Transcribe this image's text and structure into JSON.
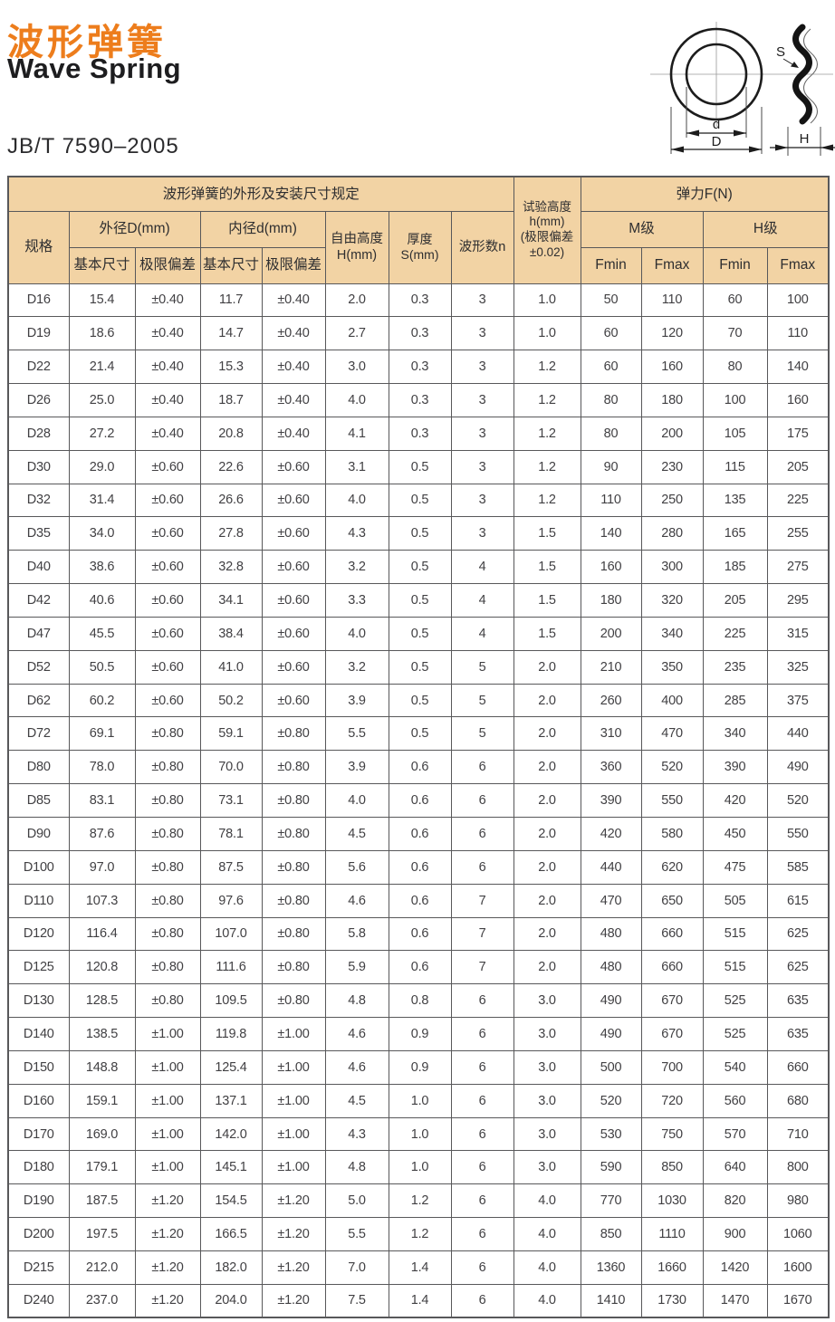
{
  "page": {
    "title_cn": "波形弹簧",
    "title_en": "Wave Spring",
    "standard": "JB/T 7590–2005"
  },
  "colors": {
    "accent_orange": "#ED7D1C",
    "table_header_bg": "#F2D3A4",
    "table_border": "#58585A",
    "text_dark": "#414043"
  },
  "diagram": {
    "labels": {
      "inner": "d",
      "outer": "D",
      "thickness": "S",
      "height": "H"
    }
  },
  "table": {
    "header": {
      "group_title": "波形弹簧的外形及安装尺寸规定",
      "spec": "规格",
      "outer_diameter": "外径D(mm)",
      "inner_diameter": "内径d(mm)",
      "basic_size_od": "基本尺寸",
      "limit_dev_od": "极限偏差",
      "basic_size_id": "基本尺寸",
      "limit_dev_id": "极限偏差",
      "free_height": "自由高度\nH(mm)",
      "thickness": "厚度S(mm)",
      "wave_count": "波形数n",
      "test_height": "试验高度\nh(mm)\n(极限偏差\n±0.02)",
      "force": "弹力F(N)",
      "m_grade": "M级",
      "h_grade": "H级",
      "fmin_m": "Fmin",
      "fmax_m": "Fmax",
      "fmin_h": "Fmin",
      "fmax_h": "Fmax"
    },
    "rows": [
      [
        "D16",
        "15.4",
        "±0.40",
        "11.7",
        "±0.40",
        "2.0",
        "0.3",
        "3",
        "1.0",
        "50",
        "110",
        "60",
        "100"
      ],
      [
        "D19",
        "18.6",
        "±0.40",
        "14.7",
        "±0.40",
        "2.7",
        "0.3",
        "3",
        "1.0",
        "60",
        "120",
        "70",
        "110"
      ],
      [
        "D22",
        "21.4",
        "±0.40",
        "15.3",
        "±0.40",
        "3.0",
        "0.3",
        "3",
        "1.2",
        "60",
        "160",
        "80",
        "140"
      ],
      [
        "D26",
        "25.0",
        "±0.40",
        "18.7",
        "±0.40",
        "4.0",
        "0.3",
        "3",
        "1.2",
        "80",
        "180",
        "100",
        "160"
      ],
      [
        "D28",
        "27.2",
        "±0.40",
        "20.8",
        "±0.40",
        "4.1",
        "0.3",
        "3",
        "1.2",
        "80",
        "200",
        "105",
        "175"
      ],
      [
        "D30",
        "29.0",
        "±0.60",
        "22.6",
        "±0.60",
        "3.1",
        "0.5",
        "3",
        "1.2",
        "90",
        "230",
        "115",
        "205"
      ],
      [
        "D32",
        "31.4",
        "±0.60",
        "26.6",
        "±0.60",
        "4.0",
        "0.5",
        "3",
        "1.2",
        "110",
        "250",
        "135",
        "225"
      ],
      [
        "D35",
        "34.0",
        "±0.60",
        "27.8",
        "±0.60",
        "4.3",
        "0.5",
        "3",
        "1.5",
        "140",
        "280",
        "165",
        "255"
      ],
      [
        "D40",
        "38.6",
        "±0.60",
        "32.8",
        "±0.60",
        "3.2",
        "0.5",
        "4",
        "1.5",
        "160",
        "300",
        "185",
        "275"
      ],
      [
        "D42",
        "40.6",
        "±0.60",
        "34.1",
        "±0.60",
        "3.3",
        "0.5",
        "4",
        "1.5",
        "180",
        "320",
        "205",
        "295"
      ],
      [
        "D47",
        "45.5",
        "±0.60",
        "38.4",
        "±0.60",
        "4.0",
        "0.5",
        "4",
        "1.5",
        "200",
        "340",
        "225",
        "315"
      ],
      [
        "D52",
        "50.5",
        "±0.60",
        "41.0",
        "±0.60",
        "3.2",
        "0.5",
        "5",
        "2.0",
        "210",
        "350",
        "235",
        "325"
      ],
      [
        "D62",
        "60.2",
        "±0.60",
        "50.2",
        "±0.60",
        "3.9",
        "0.5",
        "5",
        "2.0",
        "260",
        "400",
        "285",
        "375"
      ],
      [
        "D72",
        "69.1",
        "±0.80",
        "59.1",
        "±0.80",
        "5.5",
        "0.5",
        "5",
        "2.0",
        "310",
        "470",
        "340",
        "440"
      ],
      [
        "D80",
        "78.0",
        "±0.80",
        "70.0",
        "±0.80",
        "3.9",
        "0.6",
        "6",
        "2.0",
        "360",
        "520",
        "390",
        "490"
      ],
      [
        "D85",
        "83.1",
        "±0.80",
        "73.1",
        "±0.80",
        "4.0",
        "0.6",
        "6",
        "2.0",
        "390",
        "550",
        "420",
        "520"
      ],
      [
        "D90",
        "87.6",
        "±0.80",
        "78.1",
        "±0.80",
        "4.5",
        "0.6",
        "6",
        "2.0",
        "420",
        "580",
        "450",
        "550"
      ],
      [
        "D100",
        "97.0",
        "±0.80",
        "87.5",
        "±0.80",
        "5.6",
        "0.6",
        "6",
        "2.0",
        "440",
        "620",
        "475",
        "585"
      ],
      [
        "D110",
        "107.3",
        "±0.80",
        "97.6",
        "±0.80",
        "4.6",
        "0.6",
        "7",
        "2.0",
        "470",
        "650",
        "505",
        "615"
      ],
      [
        "D120",
        "116.4",
        "±0.80",
        "107.0",
        "±0.80",
        "5.8",
        "0.6",
        "7",
        "2.0",
        "480",
        "660",
        "515",
        "625"
      ],
      [
        "D125",
        "120.8",
        "±0.80",
        "111.6",
        "±0.80",
        "5.9",
        "0.6",
        "7",
        "2.0",
        "480",
        "660",
        "515",
        "625"
      ],
      [
        "D130",
        "128.5",
        "±0.80",
        "109.5",
        "±0.80",
        "4.8",
        "0.8",
        "6",
        "3.0",
        "490",
        "670",
        "525",
        "635"
      ],
      [
        "D140",
        "138.5",
        "±1.00",
        "119.8",
        "±1.00",
        "4.6",
        "0.9",
        "6",
        "3.0",
        "490",
        "670",
        "525",
        "635"
      ],
      [
        "D150",
        "148.8",
        "±1.00",
        "125.4",
        "±1.00",
        "4.6",
        "0.9",
        "6",
        "3.0",
        "500",
        "700",
        "540",
        "660"
      ],
      [
        "D160",
        "159.1",
        "±1.00",
        "137.1",
        "±1.00",
        "4.5",
        "1.0",
        "6",
        "3.0",
        "520",
        "720",
        "560",
        "680"
      ],
      [
        "D170",
        "169.0",
        "±1.00",
        "142.0",
        "±1.00",
        "4.3",
        "1.0",
        "6",
        "3.0",
        "530",
        "750",
        "570",
        "710"
      ],
      [
        "D180",
        "179.1",
        "±1.00",
        "145.1",
        "±1.00",
        "4.8",
        "1.0",
        "6",
        "3.0",
        "590",
        "850",
        "640",
        "800"
      ],
      [
        "D190",
        "187.5",
        "±1.20",
        "154.5",
        "±1.20",
        "5.0",
        "1.2",
        "6",
        "4.0",
        "770",
        "1030",
        "820",
        "980"
      ],
      [
        "D200",
        "197.5",
        "±1.20",
        "166.5",
        "±1.20",
        "5.5",
        "1.2",
        "6",
        "4.0",
        "850",
        "1110",
        "900",
        "1060"
      ],
      [
        "D215",
        "212.0",
        "±1.20",
        "182.0",
        "±1.20",
        "7.0",
        "1.4",
        "6",
        "4.0",
        "1360",
        "1660",
        "1420",
        "1600"
      ],
      [
        "D240",
        "237.0",
        "±1.20",
        "204.0",
        "±1.20",
        "7.5",
        "1.4",
        "6",
        "4.0",
        "1410",
        "1730",
        "1470",
        "1670"
      ]
    ]
  }
}
